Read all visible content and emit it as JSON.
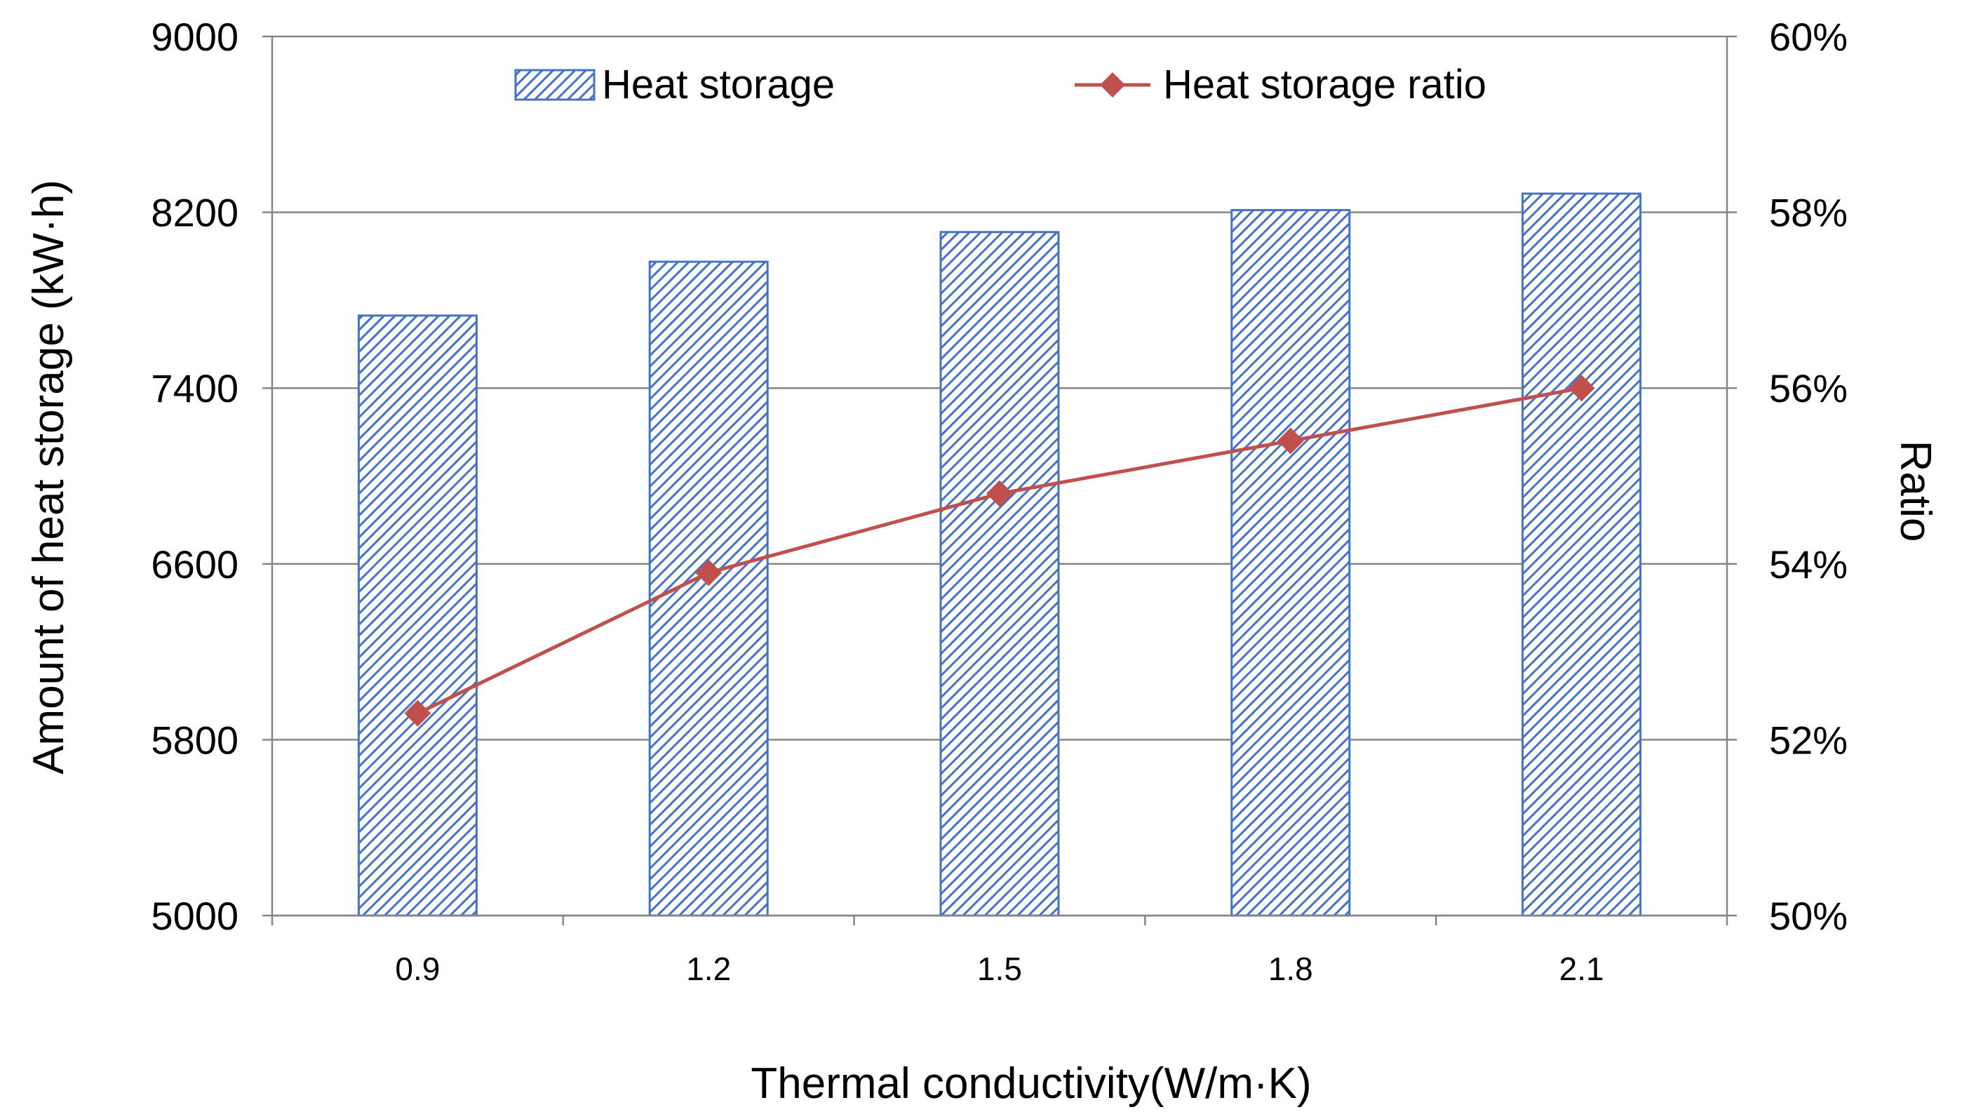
{
  "chart_data": {
    "type": "bar",
    "categories": [
      "0.9",
      "1.2",
      "1.5",
      "1.8",
      "2.1"
    ],
    "series": [
      {
        "name": "Heat storage",
        "type": "bar",
        "axis": "left",
        "values": [
          7730,
          7975,
          8110,
          8210,
          8285
        ],
        "color": "#4472C4"
      },
      {
        "name": "Heat storage ratio",
        "type": "line",
        "axis": "right",
        "values": [
          0.523,
          0.539,
          0.548,
          0.554,
          0.56
        ],
        "color": "#C0504D"
      }
    ],
    "xlabel": "Thermal conductivity(W/m·K)",
    "ylabel": "Amount of heat storage (kW·h)",
    "y2label": "Ratio",
    "ylim": [
      5000,
      9000
    ],
    "y2lim": [
      0.5,
      0.6
    ],
    "yticks": [
      "5000",
      "5800",
      "6600",
      "7400",
      "8200",
      "9000"
    ],
    "y2ticks": [
      "50%",
      "52%",
      "54%",
      "56%",
      "58%",
      "60%"
    ],
    "grid": true,
    "legend": "top"
  }
}
